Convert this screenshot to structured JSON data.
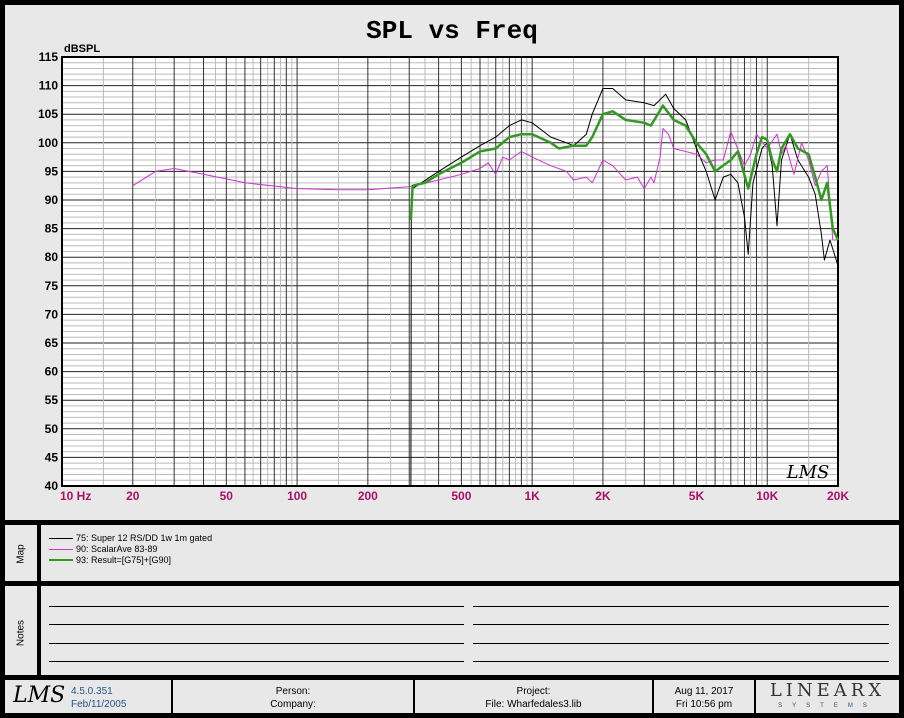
{
  "chart_data": {
    "type": "line",
    "title": "SPL vs Freq",
    "ylabel": "dBSPL",
    "xlabel": "",
    "xscale": "log",
    "xlim": [
      10,
      20000
    ],
    "ylim": [
      40,
      115
    ],
    "grid": true,
    "yticks": [
      115,
      110,
      105,
      100,
      95,
      90,
      85,
      80,
      75,
      70,
      65,
      60,
      55,
      50,
      45,
      40
    ],
    "xticks": [
      {
        "v": 10,
        "label": "10 Hz"
      },
      {
        "v": 20,
        "label": "20"
      },
      {
        "v": 50,
        "label": "50"
      },
      {
        "v": 100,
        "label": "100"
      },
      {
        "v": 200,
        "label": "200"
      },
      {
        "v": 500,
        "label": "500"
      },
      {
        "v": 1000,
        "label": "1K"
      },
      {
        "v": 2000,
        "label": "2K"
      },
      {
        "v": 5000,
        "label": "5K"
      },
      {
        "v": 10000,
        "label": "10K"
      },
      {
        "v": 20000,
        "label": "20K"
      }
    ],
    "series": [
      {
        "name": "75: Super 12 RS/DD  1w 1m gated",
        "color": "#000000",
        "width": 1,
        "points": [
          [
            305,
            40
          ],
          [
            306,
            90
          ],
          [
            310,
            92
          ],
          [
            400,
            95
          ],
          [
            500,
            97.5
          ],
          [
            600,
            99.5
          ],
          [
            700,
            101
          ],
          [
            800,
            103
          ],
          [
            900,
            104
          ],
          [
            1000,
            103.5
          ],
          [
            1200,
            101
          ],
          [
            1400,
            100
          ],
          [
            1500,
            99.5
          ],
          [
            1600,
            100.5
          ],
          [
            1700,
            101.5
          ],
          [
            1800,
            105
          ],
          [
            2000,
            109.5
          ],
          [
            2200,
            109.5
          ],
          [
            2500,
            107.5
          ],
          [
            3000,
            107
          ],
          [
            3300,
            106.5
          ],
          [
            3700,
            108.5
          ],
          [
            4000,
            106
          ],
          [
            4500,
            104
          ],
          [
            5000,
            99
          ],
          [
            5500,
            95
          ],
          [
            6000,
            90
          ],
          [
            6500,
            94
          ],
          [
            7000,
            94.5
          ],
          [
            7500,
            93
          ],
          [
            8000,
            87
          ],
          [
            8300,
            80.5
          ],
          [
            8700,
            93
          ],
          [
            9500,
            99
          ],
          [
            10000,
            100
          ],
          [
            10500,
            96
          ],
          [
            11000,
            85.5
          ],
          [
            11500,
            97
          ],
          [
            12500,
            101.5
          ],
          [
            13500,
            97
          ],
          [
            15000,
            94
          ],
          [
            16000,
            91
          ],
          [
            17000,
            84
          ],
          [
            17500,
            79.5
          ],
          [
            18500,
            83
          ],
          [
            20000,
            78.5
          ]
        ]
      },
      {
        "name": "90: ScalarAve 83-89",
        "color": "#cc33cc",
        "width": 1,
        "points": [
          [
            20,
            92.5
          ],
          [
            25,
            95
          ],
          [
            30,
            95.5
          ],
          [
            40,
            94.5
          ],
          [
            60,
            93
          ],
          [
            100,
            92
          ],
          [
            150,
            91.8
          ],
          [
            200,
            91.8
          ],
          [
            300,
            92.3
          ],
          [
            400,
            93.5
          ],
          [
            500,
            94.5
          ],
          [
            600,
            95.5
          ],
          [
            650,
            96.5
          ],
          [
            700,
            94.5
          ],
          [
            750,
            97.5
          ],
          [
            800,
            97
          ],
          [
            900,
            98.5
          ],
          [
            1000,
            97.5
          ],
          [
            1200,
            96
          ],
          [
            1400,
            95
          ],
          [
            1500,
            93.5
          ],
          [
            1700,
            94
          ],
          [
            1800,
            93
          ],
          [
            1900,
            95
          ],
          [
            2000,
            97
          ],
          [
            2200,
            96
          ],
          [
            2500,
            93.5
          ],
          [
            2800,
            94
          ],
          [
            3000,
            92
          ],
          [
            3200,
            94
          ],
          [
            3300,
            93
          ],
          [
            3500,
            97.5
          ],
          [
            3600,
            102.5
          ],
          [
            3800,
            101.5
          ],
          [
            4000,
            99
          ],
          [
            5000,
            98
          ],
          [
            5500,
            96.5
          ],
          [
            6000,
            97
          ],
          [
            6500,
            97
          ],
          [
            7000,
            102
          ],
          [
            8000,
            96
          ],
          [
            8500,
            98
          ],
          [
            9000,
            101.5
          ],
          [
            10000,
            99
          ],
          [
            11000,
            101.5
          ],
          [
            11500,
            98
          ],
          [
            12000,
            99.5
          ],
          [
            13000,
            94.5
          ],
          [
            14000,
            100
          ],
          [
            15000,
            97
          ],
          [
            16000,
            92.5
          ],
          [
            17000,
            95
          ],
          [
            18000,
            96
          ],
          [
            19000,
            83
          ],
          [
            20000,
            83
          ]
        ]
      },
      {
        "name": "93: Result=[G75]+[G90]",
        "color": "#339922",
        "width": 2.5,
        "points": [
          [
            305,
            86.5
          ],
          [
            310,
            92.5
          ],
          [
            350,
            93
          ],
          [
            400,
            94.5
          ],
          [
            500,
            96.5
          ],
          [
            600,
            98.5
          ],
          [
            700,
            99
          ],
          [
            800,
            101
          ],
          [
            900,
            101.5
          ],
          [
            1000,
            101.5
          ],
          [
            1200,
            100
          ],
          [
            1300,
            99
          ],
          [
            1500,
            99.5
          ],
          [
            1700,
            99.5
          ],
          [
            1800,
            101
          ],
          [
            2000,
            105
          ],
          [
            2200,
            105.5
          ],
          [
            2500,
            104
          ],
          [
            3000,
            103.5
          ],
          [
            3200,
            103
          ],
          [
            3600,
            106.5
          ],
          [
            4000,
            104
          ],
          [
            4500,
            103
          ],
          [
            5000,
            100
          ],
          [
            5500,
            98
          ],
          [
            6000,
            95
          ],
          [
            7000,
            97
          ],
          [
            7500,
            98.5
          ],
          [
            8300,
            92
          ],
          [
            9000,
            98
          ],
          [
            9500,
            101
          ],
          [
            10000,
            100.5
          ],
          [
            10500,
            97
          ],
          [
            11000,
            95
          ],
          [
            11500,
            99
          ],
          [
            12500,
            101.5
          ],
          [
            13500,
            99
          ],
          [
            15000,
            98
          ],
          [
            16000,
            94
          ],
          [
            17000,
            90
          ],
          [
            18000,
            93
          ],
          [
            19000,
            85
          ],
          [
            20000,
            83
          ]
        ]
      }
    ]
  },
  "map": {
    "label": "Map"
  },
  "notes": {
    "label": "Notes"
  },
  "footer": {
    "logo": "LMS",
    "watermark": "LMS",
    "version": "4.5.0.351",
    "build_date": "Feb/11/2005",
    "person": "Person:",
    "company": "Company:",
    "project": "Project:",
    "file": "File: Wharfedales3.lib",
    "date": "Aug 11, 2017",
    "time": "Fri  10:56 pm",
    "brand": "LINEARX",
    "brand_sub": "SYSTEMS"
  },
  "colors": {
    "tick_label": "#aa1166",
    "link": "#225588"
  }
}
